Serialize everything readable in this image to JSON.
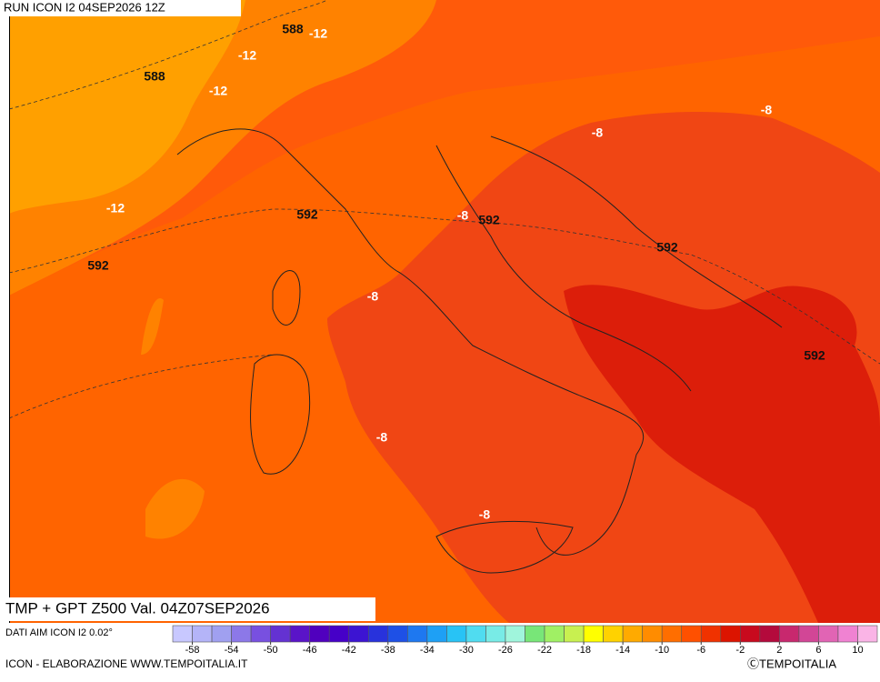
{
  "header": {
    "run": "RUN ICON I2 04SEP2026 12Z"
  },
  "map": {
    "title": "TMP + GPT Z500 Val. 04Z07SEP2026",
    "contour_labels": [
      588,
      -12,
      -12,
      588,
      -12,
      -8,
      -8,
      -12,
      592,
      -8,
      592,
      592,
      592,
      -8,
      592,
      -8,
      -8
    ]
  },
  "colorbar": {
    "source": "DATI AIM ICON I2 0.02°",
    "lim": [
      -60,
      12
    ],
    "ticks": [
      -58,
      -54,
      -50,
      -46,
      -42,
      -38,
      -34,
      -30,
      -26,
      -22,
      -18,
      -14,
      -10,
      -6,
      -2,
      2,
      6,
      10
    ],
    "colors": [
      "#c8c8ff",
      "#b4b4f8",
      "#a0a0f0",
      "#8c78e8",
      "#7850e0",
      "#6432d2",
      "#5a14c8",
      "#5000be",
      "#4600c8",
      "#3c14d2",
      "#2832dc",
      "#1e50e6",
      "#1e78f0",
      "#1ea0f5",
      "#28c3f5",
      "#50dcf0",
      "#78ebe6",
      "#a0f5dc",
      "#78e678",
      "#a0f064",
      "#c8f050",
      "#ffff00",
      "#ffd200",
      "#ffaa00",
      "#ff8c00",
      "#ff6e00",
      "#ff5000",
      "#f03200",
      "#dc1400",
      "#c80a1e",
      "#b40a3c",
      "#c8286e",
      "#d24696",
      "#e164b4",
      "#f082d2",
      "#fab4e6"
    ]
  },
  "footer": {
    "credit": "ICON - ELABORAZIONE WWW.TEMPOITALIA.IT",
    "brand": "ⒸTEMPOITALIA"
  }
}
